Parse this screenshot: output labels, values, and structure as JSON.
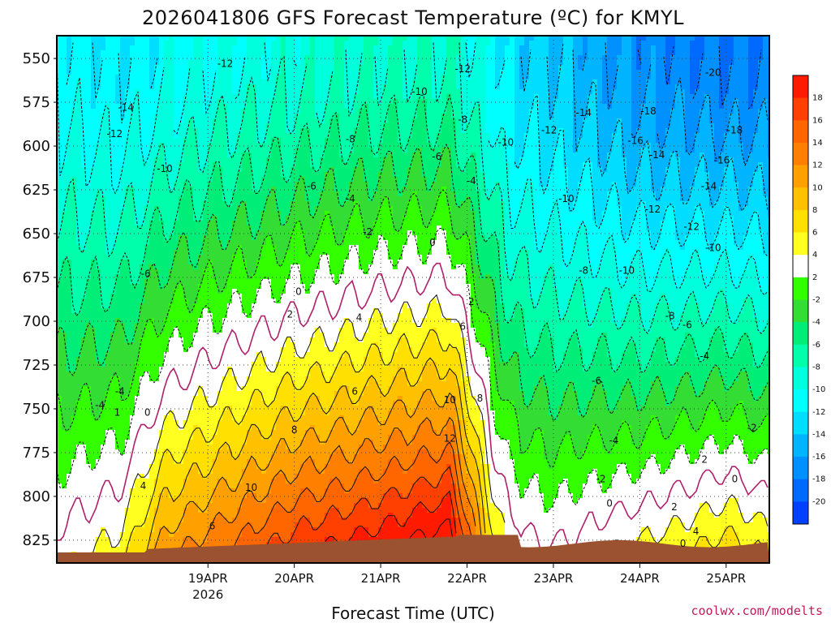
{
  "chart_data": {
    "type": "heatmap",
    "title": "2026041806 GFS Forecast Temperature (ºC) for KMYL",
    "xlabel": "Forecast Time (UTC)",
    "ylabel": "",
    "y_axis": {
      "label_values": [
        "550",
        "575",
        "600",
        "625",
        "650",
        "675",
        "700",
        "725",
        "750",
        "775",
        "800",
        "825"
      ],
      "min": 537,
      "max": 838
    },
    "x_axis": {
      "ticks": [
        {
          "label": "19APR",
          "sublabel": "2026",
          "day": 1
        },
        {
          "label": "20APR",
          "sublabel": "",
          "day": 2
        },
        {
          "label": "21APR",
          "sublabel": "",
          "day": 3
        },
        {
          "label": "22APR",
          "sublabel": "",
          "day": 4
        },
        {
          "label": "23APR",
          "sublabel": "",
          "day": 5
        },
        {
          "label": "24APR",
          "sublabel": "",
          "day": 6
        },
        {
          "label": "25APR",
          "sublabel": "",
          "day": 7
        }
      ],
      "min_day": -0.75,
      "max_day": 7.5
    },
    "colorbar": {
      "labels": [
        "18",
        "16",
        "14",
        "12",
        "10",
        "8",
        "6",
        "4",
        "2",
        "-2",
        "-4",
        "-6",
        "-8",
        "-10",
        "-12",
        "-14",
        "-16",
        "-18",
        "-20"
      ],
      "colors": [
        "#ff1a00",
        "#ff4000",
        "#ff6600",
        "#ff8000",
        "#ffa000",
        "#ffc000",
        "#ffe000",
        "#ffff20",
        "#ffffff",
        "#33ff00",
        "#33dd33",
        "#00ee77",
        "#00ffaa",
        "#00ffdd",
        "#00ffff",
        "#00ddff",
        "#00b4ff",
        "#0090ff",
        "#006aff",
        "#0040ff"
      ]
    },
    "temperature_profile_keyframes": [
      {
        "day": -0.7,
        "t550": -13,
        "t_surface": 1
      },
      {
        "day": 0.0,
        "t550": -14,
        "t_surface": 3
      },
      {
        "day": 0.5,
        "t550": -13,
        "t_surface": 9
      },
      {
        "day": 1.0,
        "t550": -12,
        "t_surface": 11
      },
      {
        "day": 2.0,
        "t550": -11,
        "t_surface": 15
      },
      {
        "day": 3.0,
        "t550": -10,
        "t_surface": 17
      },
      {
        "day": 3.8,
        "t550": -10,
        "t_surface": 19
      },
      {
        "day": 4.3,
        "t550": -13,
        "t_surface": 4
      },
      {
        "day": 4.5,
        "t550": -15,
        "t_surface": 1
      },
      {
        "day": 5.0,
        "t550": -16,
        "t_surface": 0
      },
      {
        "day": 6.0,
        "t550": -19,
        "t_surface": 2
      },
      {
        "day": 7.0,
        "t550": -20,
        "t_surface": 5
      },
      {
        "day": 7.5,
        "t550": -20,
        "t_surface": 3
      }
    ],
    "contour_labels": [
      {
        "text": "-12",
        "day": 1.2,
        "hpa": 553
      },
      {
        "text": "-14",
        "day": 0.05,
        "hpa": 578
      },
      {
        "text": "-12",
        "day": -0.08,
        "hpa": 593
      },
      {
        "text": "-10",
        "day": 0.5,
        "hpa": 613
      },
      {
        "text": "-6",
        "day": 0.28,
        "hpa": 673
      },
      {
        "text": "-4",
        "day": -0.25,
        "hpa": 748
      },
      {
        "text": "0",
        "day": 0.3,
        "hpa": 752
      },
      {
        "text": "4",
        "day": 0.25,
        "hpa": 794
      },
      {
        "text": "6",
        "day": 1.05,
        "hpa": 817
      },
      {
        "text": "8",
        "day": 2.0,
        "hpa": 762
      },
      {
        "text": "10",
        "day": 1.5,
        "hpa": 795
      },
      {
        "text": "6",
        "day": 2.7,
        "hpa": 740
      },
      {
        "text": "4",
        "day": 2.75,
        "hpa": 698
      },
      {
        "text": "2",
        "day": 1.95,
        "hpa": 696
      },
      {
        "text": "0",
        "day": 2.05,
        "hpa": 683
      },
      {
        "text": "-2",
        "day": 2.85,
        "hpa": 649
      },
      {
        "text": "-4",
        "day": 2.65,
        "hpa": 630
      },
      {
        "text": "-6",
        "day": 2.2,
        "hpa": 623
      },
      {
        "text": "-8",
        "day": 2.65,
        "hpa": 596
      },
      {
        "text": "-10",
        "day": 3.45,
        "hpa": 569
      },
      {
        "text": "-12",
        "day": 3.95,
        "hpa": 556
      },
      {
        "text": "-8",
        "day": 3.95,
        "hpa": 585
      },
      {
        "text": "-6",
        "day": 3.65,
        "hpa": 606
      },
      {
        "text": "-4",
        "day": 4.05,
        "hpa": 620
      },
      {
        "text": "0",
        "day": 3.6,
        "hpa": 655
      },
      {
        "text": "2",
        "day": 4.05,
        "hpa": 689
      },
      {
        "text": "6",
        "day": 3.95,
        "hpa": 703
      },
      {
        "text": "8",
        "day": 4.15,
        "hpa": 744
      },
      {
        "text": "10",
        "day": 3.8,
        "hpa": 745
      },
      {
        "text": "12",
        "day": 3.8,
        "hpa": 767
      },
      {
        "text": "-10",
        "day": 4.45,
        "hpa": 598
      },
      {
        "text": "-12",
        "day": 4.95,
        "hpa": 591
      },
      {
        "text": "-14",
        "day": 5.35,
        "hpa": 581
      },
      {
        "text": "-10",
        "day": 5.15,
        "hpa": 630
      },
      {
        "text": "-8",
        "day": 5.35,
        "hpa": 671
      },
      {
        "text": "-6",
        "day": 5.5,
        "hpa": 734
      },
      {
        "text": "-4",
        "day": 5.7,
        "hpa": 768
      },
      {
        "text": "-2",
        "day": 5.55,
        "hpa": 790
      },
      {
        "text": "0",
        "day": 5.65,
        "hpa": 804
      },
      {
        "text": "-10",
        "day": 5.85,
        "hpa": 671
      },
      {
        "text": "-12",
        "day": 6.15,
        "hpa": 636
      },
      {
        "text": "-14",
        "day": 6.2,
        "hpa": 605
      },
      {
        "text": "-16",
        "day": 5.95,
        "hpa": 597
      },
      {
        "text": "-18",
        "day": 6.1,
        "hpa": 580
      },
      {
        "text": "-20",
        "day": 6.85,
        "hpa": 558
      },
      {
        "text": "-18",
        "day": 7.1,
        "hpa": 591
      },
      {
        "text": "-16",
        "day": 6.95,
        "hpa": 608
      },
      {
        "text": "-14",
        "day": 6.8,
        "hpa": 623
      },
      {
        "text": "-12",
        "day": 6.6,
        "hpa": 646
      },
      {
        "text": "-10",
        "day": 6.85,
        "hpa": 658
      },
      {
        "text": "-8",
        "day": 6.35,
        "hpa": 697
      },
      {
        "text": "-6",
        "day": 6.55,
        "hpa": 702
      },
      {
        "text": "-4",
        "day": 6.75,
        "hpa": 720
      },
      {
        "text": "-2",
        "day": 7.3,
        "hpa": 761
      },
      {
        "text": "2",
        "day": 6.75,
        "hpa": 779
      },
      {
        "text": "0",
        "day": 7.1,
        "hpa": 790
      },
      {
        "text": "2",
        "day": 6.4,
        "hpa": 806
      },
      {
        "text": "4",
        "day": 6.65,
        "hpa": 820
      },
      {
        "text": "0",
        "day": 6.5,
        "hpa": 827
      },
      {
        "text": "-4",
        "day": -0.02,
        "hpa": 740
      },
      {
        "text": "1",
        "day": -0.05,
        "hpa": 752
      }
    ]
  },
  "credit": "coolwx.com/modelts"
}
